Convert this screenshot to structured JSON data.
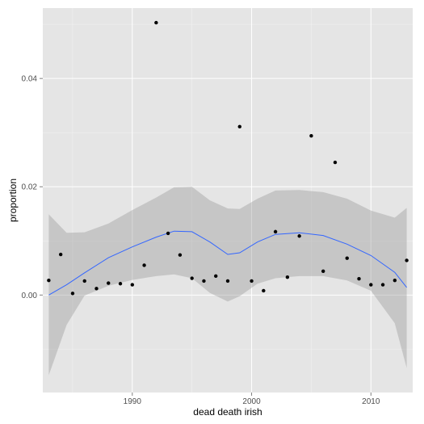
{
  "chart_data": {
    "type": "scatter",
    "title": "",
    "xlabel": "dead death irish",
    "ylabel": "proportion",
    "xlim": [
      1982.5,
      2013.5
    ],
    "ylim": [
      -0.018,
      0.053
    ],
    "x_ticks": [
      1990,
      2000,
      2010
    ],
    "x_tick_labels": [
      "1990",
      "2000",
      "2010"
    ],
    "y_ticks": [
      0.0,
      0.02,
      0.04
    ],
    "y_tick_labels": [
      "0.00",
      "0.02",
      "0.04"
    ],
    "grid": true,
    "points": [
      [
        1983,
        0.0027
      ],
      [
        1984,
        0.0075
      ],
      [
        1985,
        0.0003
      ],
      [
        1986,
        0.0026
      ],
      [
        1987,
        0.0012
      ],
      [
        1988,
        0.0022
      ],
      [
        1989,
        0.0021
      ],
      [
        1990,
        0.0019
      ],
      [
        1991,
        0.0055
      ],
      [
        1992,
        0.0503
      ],
      [
        1993,
        0.0114
      ],
      [
        1994,
        0.0074
      ],
      [
        1995,
        0.0031
      ],
      [
        1996,
        0.0026
      ],
      [
        1997,
        0.0035
      ],
      [
        1998,
        0.0026
      ],
      [
        1999,
        0.0311
      ],
      [
        2000,
        0.0026
      ],
      [
        2001,
        0.0008
      ],
      [
        2002,
        0.0117
      ],
      [
        2003,
        0.0033
      ],
      [
        2004,
        0.0109
      ],
      [
        2005,
        0.0294
      ],
      [
        2006,
        0.0044
      ],
      [
        2007,
        0.0245
      ],
      [
        2008,
        0.0068
      ],
      [
        2009,
        0.003
      ],
      [
        2010,
        0.0019
      ],
      [
        2011,
        0.0019
      ],
      [
        2012,
        0.0027
      ],
      [
        2013,
        0.0064
      ]
    ],
    "smooth": {
      "x": [
        1983,
        1984.5,
        1986,
        1988,
        1990,
        1992,
        1993.5,
        1995,
        1996.5,
        1998,
        1999,
        2000.5,
        2002,
        2004,
        2006,
        2008,
        2010,
        2012,
        2013
      ],
      "y": [
        0.0,
        0.0019,
        0.0041,
        0.0069,
        0.0089,
        0.0107,
        0.0118,
        0.0117,
        0.0098,
        0.0075,
        0.0078,
        0.0098,
        0.0112,
        0.0115,
        0.011,
        0.0094,
        0.0073,
        0.0042,
        0.0014
      ],
      "lower": [
        -0.0148,
        -0.0055,
        -0.0001,
        0.0017,
        0.0028,
        0.0035,
        0.0038,
        0.0031,
        0.0004,
        -0.0012,
        -0.0002,
        0.0021,
        0.0031,
        0.0035,
        0.0035,
        0.0027,
        0.0008,
        -0.0052,
        -0.0135
      ],
      "upper": [
        0.0149,
        0.0115,
        0.0116,
        0.0132,
        0.0157,
        0.018,
        0.0199,
        0.02,
        0.0175,
        0.016,
        0.0159,
        0.0178,
        0.0193,
        0.0194,
        0.019,
        0.0178,
        0.0156,
        0.0143,
        0.0161
      ]
    },
    "colors": {
      "panel": "#e5e5e5",
      "grid_major": "#ffffff",
      "grid_minor": "#f2f2f2",
      "point": "#000000",
      "line": "#3366ff",
      "ribbon": "#999999"
    }
  }
}
